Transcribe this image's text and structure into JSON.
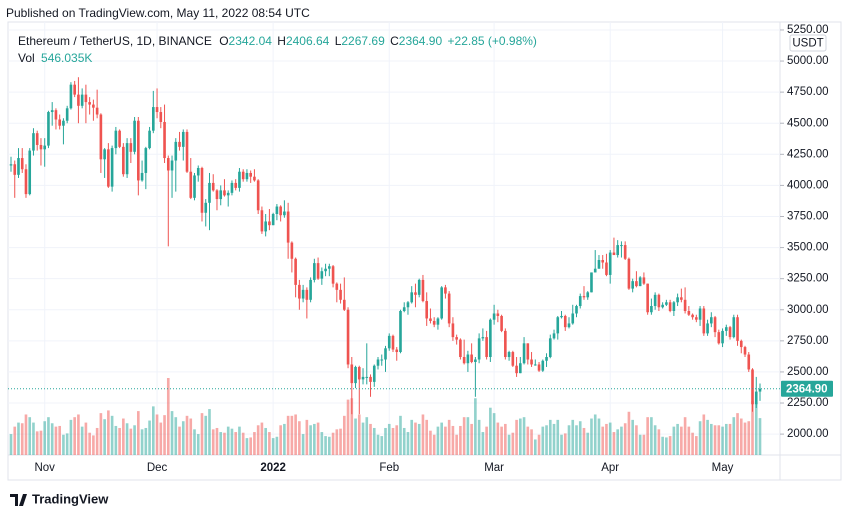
{
  "header": {
    "published": "Published on TradingView.com, May 11, 2022 08:54 UTC"
  },
  "footer": {
    "brand": "TradingView"
  },
  "chart_data": {
    "type": "candlestick",
    "legend": {
      "symbol": "Ethereum / TetherUS, 1D, BINANCE",
      "items": [
        {
          "key": "O",
          "value": "2342.04"
        },
        {
          "key": "H",
          "value": "2406.64"
        },
        {
          "key": "L",
          "value": "2267.69"
        },
        {
          "key": "C",
          "value": "2364.90"
        }
      ],
      "change": "+22.85 (+0.98%)",
      "volume_title": "Vol",
      "volume_last_label": "546.035K"
    },
    "currency": "USDT",
    "last_price_label": "2364.90",
    "up_color": "#26a69a",
    "down_color": "#ef5350",
    "grid": true,
    "ylim": [
      1832,
      5314
    ],
    "yticks": [
      {
        "value": 2000,
        "label": "2000.00"
      },
      {
        "value": 2250,
        "label": "2250.00"
      },
      {
        "value": 2500,
        "label": "2500.00"
      },
      {
        "value": 2750,
        "label": "2750.00"
      },
      {
        "value": 3000,
        "label": "3000.00"
      },
      {
        "value": 3250,
        "label": "3250.00"
      },
      {
        "value": 3500,
        "label": "3500.00"
      },
      {
        "value": 3750,
        "label": "3750.00"
      },
      {
        "value": 4000,
        "label": "4000.00"
      },
      {
        "value": 4250,
        "label": "4250.00"
      },
      {
        "value": 4500,
        "label": "4500.00"
      },
      {
        "value": 4750,
        "label": "4750.00"
      },
      {
        "value": 5000,
        "label": "5000.00"
      },
      {
        "value": 5250,
        "label": "5250.00"
      }
    ],
    "categories": [
      null,
      null,
      null,
      null,
      null,
      null,
      null,
      null,
      null,
      "Nov",
      null,
      null,
      null,
      null,
      null,
      null,
      null,
      null,
      null,
      null,
      null,
      null,
      null,
      null,
      null,
      null,
      null,
      null,
      null,
      null,
      null,
      null,
      null,
      null,
      null,
      null,
      null,
      null,
      null,
      "Dec",
      null,
      null,
      null,
      null,
      null,
      null,
      null,
      null,
      null,
      null,
      null,
      null,
      null,
      null,
      null,
      null,
      null,
      null,
      null,
      null,
      null,
      null,
      null,
      null,
      null,
      null,
      null,
      null,
      null,
      null,
      "2022",
      null,
      null,
      null,
      null,
      null,
      null,
      null,
      null,
      null,
      null,
      null,
      null,
      null,
      null,
      null,
      null,
      null,
      null,
      null,
      null,
      null,
      null,
      null,
      null,
      null,
      null,
      null,
      null,
      null,
      null,
      "Feb",
      null,
      null,
      null,
      null,
      null,
      null,
      null,
      null,
      null,
      null,
      null,
      null,
      null,
      null,
      null,
      null,
      null,
      null,
      null,
      null,
      null,
      null,
      null,
      null,
      null,
      null,
      null,
      "Mar",
      null,
      null,
      null,
      null,
      null,
      null,
      null,
      null,
      null,
      null,
      null,
      null,
      null,
      null,
      null,
      null,
      null,
      null,
      null,
      null,
      null,
      null,
      null,
      null,
      null,
      null,
      null,
      null,
      null,
      null,
      "Apr",
      null,
      null,
      null,
      null,
      null,
      null,
      null,
      null,
      null,
      null,
      null,
      null,
      null,
      null,
      null,
      null,
      null,
      null,
      null,
      null,
      null,
      null,
      null,
      null,
      null,
      null,
      null,
      null,
      null,
      "May",
      null,
      null,
      null,
      null,
      null,
      null,
      null,
      null,
      null,
      null
    ],
    "open": [
      4160,
      4170,
      4085,
      4220,
      4130,
      3930,
      4280,
      4420,
      4325,
      4290,
      4320,
      4590,
      4605,
      4530,
      4480,
      4520,
      4620,
      4810,
      4730,
      4640,
      4730,
      4670,
      4650,
      4625,
      4570,
      4210,
      4290,
      3990,
      4300,
      4440,
      4310,
      4090,
      4340,
      4270,
      4520,
      4040,
      4100,
      4300,
      4440,
      4630,
      4590,
      4510,
      4220,
      4120,
      4200,
      4350,
      4310,
      4430,
      4110,
      3900,
      4080,
      4140,
      3780,
      3860,
      4020,
      3960,
      3890,
      3960,
      3920,
      3940,
      4020,
      3980,
      4110,
      4050,
      4100,
      4070,
      4040,
      3800,
      3630,
      3710,
      3680,
      3770,
      3830,
      3760,
      3790,
      3540,
      3410,
      3200,
      3090,
      3160,
      3080,
      3240,
      3375,
      3250,
      3310,
      3330,
      3350,
      3210,
      3160,
      3080,
      3000,
      2560,
      2410,
      2540,
      2440,
      2460,
      2460,
      2420,
      2550,
      2600,
      2600,
      2690,
      2790,
      2680,
      2660,
      2990,
      3020,
      3060,
      3140,
      3120,
      3240,
      3070,
      2930,
      2910,
      2880,
      2930,
      3180,
      3130,
      2890,
      2780,
      2760,
      2620,
      2570,
      2640,
      2580,
      2600,
      2770,
      2780,
      2620,
      2920,
      2970,
      2950,
      2830,
      2620,
      2660,
      2550,
      2490,
      2570,
      2730,
      2600,
      2560,
      2560,
      2510,
      2590,
      2620,
      2770,
      2810,
      2940,
      2950,
      2860,
      2890,
      2970,
      3030,
      3110,
      3100,
      3140,
      3300,
      3330,
      3400,
      3380,
      3280,
      3460,
      3440,
      3520,
      3520,
      3410,
      3170,
      3230,
      3190,
      3260,
      3210,
      2980,
      3030,
      3120,
      3020,
      3040,
      3060,
      2990,
      3060,
      3100,
      3080,
      2990,
      2960,
      2940,
      2920,
      3010,
      2810,
      2890,
      2940,
      2820,
      2730,
      2830,
      2860,
      2780,
      2940,
      2750,
      2700,
      2640,
      2520,
      2240,
      2342.04
    ],
    "high": [
      4230,
      4200,
      4300,
      4300,
      4170,
      4300,
      4460,
      4440,
      4380,
      4380,
      4600,
      4670,
      4620,
      4570,
      4540,
      4640,
      4830,
      4840,
      4870,
      4780,
      4810,
      4710,
      4690,
      4770,
      4580,
      4300,
      4340,
      4320,
      4470,
      4450,
      4340,
      4380,
      4380,
      4550,
      4550,
      4200,
      4310,
      4470,
      4760,
      4780,
      4630,
      4650,
      4240,
      4240,
      4380,
      4430,
      4450,
      4450,
      4220,
      4100,
      4160,
      4150,
      3890,
      4100,
      4090,
      3970,
      4000,
      4050,
      3960,
      4040,
      4050,
      4140,
      4130,
      4130,
      4120,
      4130,
      4050,
      3830,
      3770,
      3810,
      3780,
      3850,
      3840,
      3880,
      3860,
      3550,
      3420,
      3240,
      3200,
      3180,
      3260,
      3410,
      3420,
      3340,
      3370,
      3370,
      3360,
      3220,
      3210,
      3260,
      3020,
      2620,
      2550,
      2550,
      2530,
      2730,
      2480,
      2560,
      2620,
      2640,
      2710,
      2810,
      2800,
      2700,
      3000,
      3060,
      3070,
      3190,
      3210,
      3250,
      3280,
      3140,
      3010,
      2940,
      2940,
      3190,
      3200,
      3150,
      2940,
      2800,
      2770,
      2760,
      2670,
      2730,
      2620,
      2810,
      2850,
      2830,
      2930,
      3040,
      3000,
      2960,
      2850,
      2670,
      2670,
      2620,
      2620,
      2780,
      2730,
      2660,
      2600,
      2580,
      2600,
      2650,
      2800,
      2840,
      2950,
      2990,
      2960,
      2940,
      3040,
      3040,
      3130,
      3190,
      3150,
      3300,
      3480,
      3440,
      3440,
      3450,
      3480,
      3580,
      3560,
      3550,
      3550,
      3420,
      3250,
      3310,
      3270,
      3300,
      3210,
      3090,
      3140,
      3130,
      3060,
      3080,
      3080,
      3070,
      3130,
      3170,
      3180,
      3030,
      2970,
      2960,
      3030,
      3030,
      2920,
      2980,
      2950,
      2840,
      2850,
      2880,
      2870,
      2960,
      2960,
      2760,
      2710,
      2660,
      2530,
      2460,
      2406.64
    ],
    "low": [
      4110,
      3900,
      4060,
      4100,
      3900,
      3920,
      4240,
      4280,
      4160,
      4150,
      4300,
      4480,
      4450,
      4450,
      4330,
      4500,
      4610,
      4710,
      4500,
      4620,
      4500,
      4570,
      4520,
      4540,
      4100,
      4060,
      3980,
      3950,
      4250,
      4300,
      4070,
      4060,
      4180,
      4250,
      3920,
      4030,
      3970,
      4290,
      4420,
      4540,
      4460,
      4180,
      3510,
      3900,
      3950,
      4280,
      4200,
      4100,
      3890,
      3880,
      4030,
      3710,
      3670,
      3640,
      3950,
      3800,
      3840,
      3910,
      3830,
      3920,
      3960,
      3950,
      4030,
      4030,
      4020,
      4030,
      3770,
      3610,
      3590,
      3640,
      3680,
      3720,
      3710,
      3740,
      3410,
      3300,
      3100,
      3000,
      3060,
      2930,
      3060,
      3220,
      3240,
      3200,
      3270,
      3270,
      3180,
      3060,
      3050,
      2990,
      2530,
      2160,
      2370,
      2160,
      2400,
      2400,
      2300,
      2380,
      2520,
      2550,
      2500,
      2670,
      2660,
      2590,
      2650,
      2980,
      2960,
      3050,
      3020,
      3100,
      3060,
      2870,
      2890,
      2860,
      2840,
      2920,
      3090,
      2860,
      2750,
      2720,
      2600,
      2560,
      2500,
      2570,
      2300,
      2570,
      2750,
      2600,
      2580,
      2880,
      2900,
      2820,
      2600,
      2590,
      2540,
      2460,
      2490,
      2560,
      2560,
      2540,
      2550,
      2500,
      2500,
      2540,
      2610,
      2760,
      2760,
      2930,
      2830,
      2850,
      2880,
      2940,
      3010,
      3080,
      3080,
      3140,
      3300,
      3330,
      3330,
      3270,
      3210,
      3440,
      3420,
      3420,
      3400,
      3160,
      3140,
      3180,
      3190,
      3200,
      2960,
      2960,
      3000,
      2990,
      3010,
      3030,
      2980,
      2950,
      3030,
      3060,
      2970,
      2950,
      2920,
      2900,
      2870,
      2790,
      2790,
      2860,
      2780,
      2720,
      2700,
      2790,
      2760,
      2770,
      2710,
      2650,
      2620,
      2500,
      2180,
      2210,
      2267.69
    ],
    "close": [
      4170,
      4085,
      4220,
      4130,
      3930,
      4280,
      4420,
      4325,
      4290,
      4320,
      4590,
      4605,
      4530,
      4480,
      4520,
      4620,
      4810,
      4730,
      4640,
      4730,
      4670,
      4650,
      4625,
      4570,
      4210,
      4290,
      3990,
      4300,
      4440,
      4310,
      4090,
      4340,
      4270,
      4520,
      4040,
      4100,
      4300,
      4440,
      4630,
      4590,
      4510,
      4220,
      4120,
      4200,
      4350,
      4310,
      4430,
      4110,
      3900,
      4080,
      4140,
      3780,
      3860,
      4020,
      3960,
      3890,
      3960,
      3920,
      3940,
      4020,
      3980,
      4110,
      4050,
      4100,
      4070,
      4040,
      3800,
      3630,
      3710,
      3680,
      3770,
      3830,
      3760,
      3790,
      3540,
      3410,
      3200,
      3090,
      3160,
      3080,
      3240,
      3375,
      3250,
      3310,
      3330,
      3350,
      3210,
      3160,
      3080,
      3000,
      2560,
      2410,
      2540,
      2440,
      2460,
      2460,
      2420,
      2550,
      2600,
      2600,
      2690,
      2790,
      2680,
      2660,
      2990,
      3020,
      3060,
      3140,
      3120,
      3240,
      3070,
      2930,
      2910,
      2880,
      2930,
      3180,
      3130,
      2890,
      2780,
      2760,
      2620,
      2570,
      2640,
      2580,
      2600,
      2770,
      2780,
      2620,
      2920,
      2970,
      2950,
      2830,
      2620,
      2660,
      2550,
      2490,
      2570,
      2730,
      2600,
      2560,
      2560,
      2510,
      2590,
      2620,
      2770,
      2810,
      2940,
      2950,
      2860,
      2890,
      2970,
      3030,
      3110,
      3100,
      3140,
      3300,
      3330,
      3400,
      3380,
      3280,
      3460,
      3440,
      3520,
      3520,
      3410,
      3170,
      3230,
      3190,
      3260,
      3210,
      2980,
      3030,
      3120,
      3020,
      3040,
      3060,
      2990,
      3060,
      3100,
      3080,
      2990,
      2960,
      2940,
      2920,
      3010,
      2810,
      2890,
      2940,
      2820,
      2730,
      2830,
      2860,
      2780,
      2940,
      2750,
      2700,
      2640,
      2520,
      2240,
      2342.04,
      2364.9
    ],
    "volume": [
      310,
      420,
      480,
      470,
      600,
      560,
      480,
      350,
      360,
      500,
      560,
      470,
      420,
      430,
      300,
      320,
      520,
      560,
      600,
      420,
      480,
      330,
      290,
      400,
      620,
      530,
      660,
      580,
      430,
      400,
      540,
      470,
      390,
      440,
      650,
      380,
      400,
      510,
      720,
      600,
      480,
      590,
      1140,
      650,
      560,
      420,
      500,
      580,
      540,
      380,
      310,
      620,
      580,
      680,
      380,
      400,
      340,
      330,
      420,
      390,
      340,
      420,
      330,
      250,
      260,
      340,
      440,
      480,
      400,
      340,
      250,
      270,
      440,
      460,
      580,
      580,
      600,
      500,
      310,
      520,
      440,
      460,
      480,
      340,
      280,
      270,
      330,
      380,
      390,
      580,
      820,
      840,
      540,
      600,
      480,
      560,
      460,
      400,
      300,
      280,
      400,
      460,
      400,
      440,
      580,
      400,
      340,
      520,
      480,
      460,
      600,
      520,
      360,
      300,
      420,
      480,
      420,
      520,
      430,
      300,
      430,
      560,
      560,
      460,
      840,
      520,
      340,
      420,
      700,
      620,
      480,
      420,
      460,
      300,
      330,
      520,
      540,
      560,
      420,
      380,
      230,
      300,
      420,
      440,
      520,
      460,
      520,
      300,
      320,
      440,
      520,
      440,
      500,
      400,
      330,
      540,
      600,
      540,
      420,
      460,
      480,
      340,
      380,
      420,
      470,
      640,
      520,
      440,
      300,
      300,
      560,
      560,
      440,
      380,
      270,
      260,
      280,
      420,
      460,
      420,
      560,
      420,
      330,
      280,
      500,
      600,
      520,
      460,
      440,
      440,
      420,
      460,
      460,
      560,
      620,
      540,
      480,
      500,
      800,
      780,
      546.035
    ]
  }
}
